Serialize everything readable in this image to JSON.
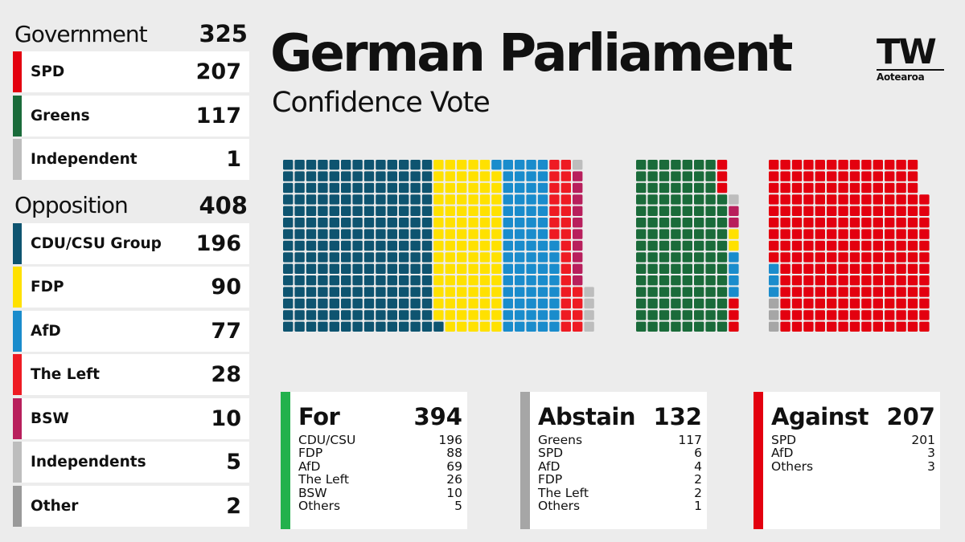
{
  "header": {
    "title": "German Parliament",
    "subtitle": "Confidence Vote",
    "logo_main": "TW",
    "logo_sub": "Aotearoa"
  },
  "colors": {
    "SPD": "#e3000f",
    "Greens": "#1a6b3a",
    "CDU/CSU": "#0e5470",
    "FDP": "#ffe100",
    "AfD": "#1a8ccc",
    "The Left": "#ee1b23",
    "BSW": "#b81f5c",
    "Independents": "#bdbdbd",
    "Other": "#9a9a9a",
    "For": "#22b14c",
    "Abstain": "#a6a6a6",
    "Against": "#e3000f"
  },
  "sidebar": {
    "government": {
      "label": "Government",
      "total": "325",
      "parties": [
        {
          "name": "SPD",
          "count": "207",
          "color": "#e3000f"
        },
        {
          "name": "Greens",
          "count": "117",
          "color": "#1a6b3a"
        },
        {
          "name": "Independent",
          "count": "1",
          "color": "#bdbdbd"
        }
      ]
    },
    "opposition": {
      "label": "Opposition",
      "total": "408",
      "parties": [
        {
          "name": "CDU/CSU Group",
          "count": "196",
          "color": "#0e5470"
        },
        {
          "name": "FDP",
          "count": "90",
          "color": "#ffe100"
        },
        {
          "name": "AfD",
          "count": "77",
          "color": "#1a8ccc"
        },
        {
          "name": "The Left",
          "count": "28",
          "color": "#ee1b23"
        },
        {
          "name": "BSW",
          "count": "10",
          "color": "#b81f5c"
        },
        {
          "name": "Independents",
          "count": "5",
          "color": "#bdbdbd"
        },
        {
          "name": "Other",
          "count": "2",
          "color": "#9a9a9a"
        }
      ]
    }
  },
  "votes": [
    {
      "label": "For",
      "total": "394",
      "color": "#22b14c",
      "items": [
        {
          "name": "CDU/CSU",
          "count": "196"
        },
        {
          "name": "FDP",
          "count": "88"
        },
        {
          "name": "AfD",
          "count": "69"
        },
        {
          "name": "The Left",
          "count": "26"
        },
        {
          "name": "BSW",
          "count": "10"
        },
        {
          "name": "Others",
          "count": "5"
        }
      ]
    },
    {
      "label": "Abstain",
      "total": "132",
      "color": "#a6a6a6",
      "items": [
        {
          "name": "Greens",
          "count": "117"
        },
        {
          "name": "SPD",
          "count": "6"
        },
        {
          "name": "AfD",
          "count": "4"
        },
        {
          "name": "FDP",
          "count": "2"
        },
        {
          "name": "The Left",
          "count": "2"
        },
        {
          "name": "Others",
          "count": "1"
        }
      ]
    },
    {
      "label": "Against",
      "total": "207",
      "color": "#e3000f",
      "items": [
        {
          "name": "SPD",
          "count": "201"
        },
        {
          "name": "AfD",
          "count": "3"
        },
        {
          "name": "Others",
          "count": "3"
        }
      ]
    }
  ],
  "chart_data": {
    "type": "waffle",
    "groups": [
      {
        "name": "For",
        "series": [
          {
            "name": "CDU/CSU",
            "value": 196,
            "color": "#0e5470"
          },
          {
            "name": "FDP",
            "value": 88,
            "color": "#ffe100"
          },
          {
            "name": "AfD",
            "value": 69,
            "color": "#1a8ccc"
          },
          {
            "name": "The Left",
            "value": 26,
            "color": "#ee1b23"
          },
          {
            "name": "BSW",
            "value": 10,
            "color": "#b81f5c"
          },
          {
            "name": "Others",
            "value": 5,
            "color": "#bdbdbd"
          }
        ]
      },
      {
        "name": "Abstain",
        "series": [
          {
            "name": "Greens",
            "value": 117,
            "color": "#1a6b3a"
          },
          {
            "name": "SPD",
            "value": 6,
            "color": "#e3000f"
          },
          {
            "name": "AfD",
            "value": 4,
            "color": "#1a8ccc"
          },
          {
            "name": "FDP",
            "value": 2,
            "color": "#ffe100"
          },
          {
            "name": "The Left",
            "value": 2,
            "color": "#b81f5c"
          },
          {
            "name": "Others",
            "value": 1,
            "color": "#bdbdbd"
          }
        ]
      },
      {
        "name": "Against",
        "series": [
          {
            "name": "Others",
            "value": 3,
            "color": "#a6a6a6"
          },
          {
            "name": "AfD",
            "value": 3,
            "color": "#1a8ccc"
          },
          {
            "name": "SPD",
            "value": 201,
            "color": "#e3000f"
          }
        ]
      }
    ]
  }
}
